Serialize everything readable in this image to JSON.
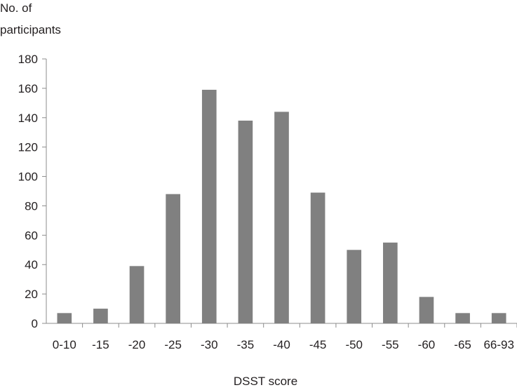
{
  "chart_data": {
    "type": "bar",
    "ylabel_lines": [
      "No. of",
      "participants"
    ],
    "xlabel": "DSST score",
    "categories": [
      "0-10",
      "-15",
      "-20",
      "-25",
      "-30",
      "-35",
      "-40",
      "-45",
      "-50",
      "-55",
      "-60",
      "-65",
      "66-93"
    ],
    "values": [
      7,
      10,
      39,
      88,
      159,
      138,
      144,
      89,
      50,
      55,
      18,
      7,
      7
    ],
    "ylim": [
      0,
      180
    ],
    "yticks": [
      0,
      20,
      40,
      60,
      80,
      100,
      120,
      140,
      160,
      180
    ],
    "grid": false,
    "legend": "none",
    "bar_color": "#808080",
    "axis_color": "#8c8c8c"
  }
}
